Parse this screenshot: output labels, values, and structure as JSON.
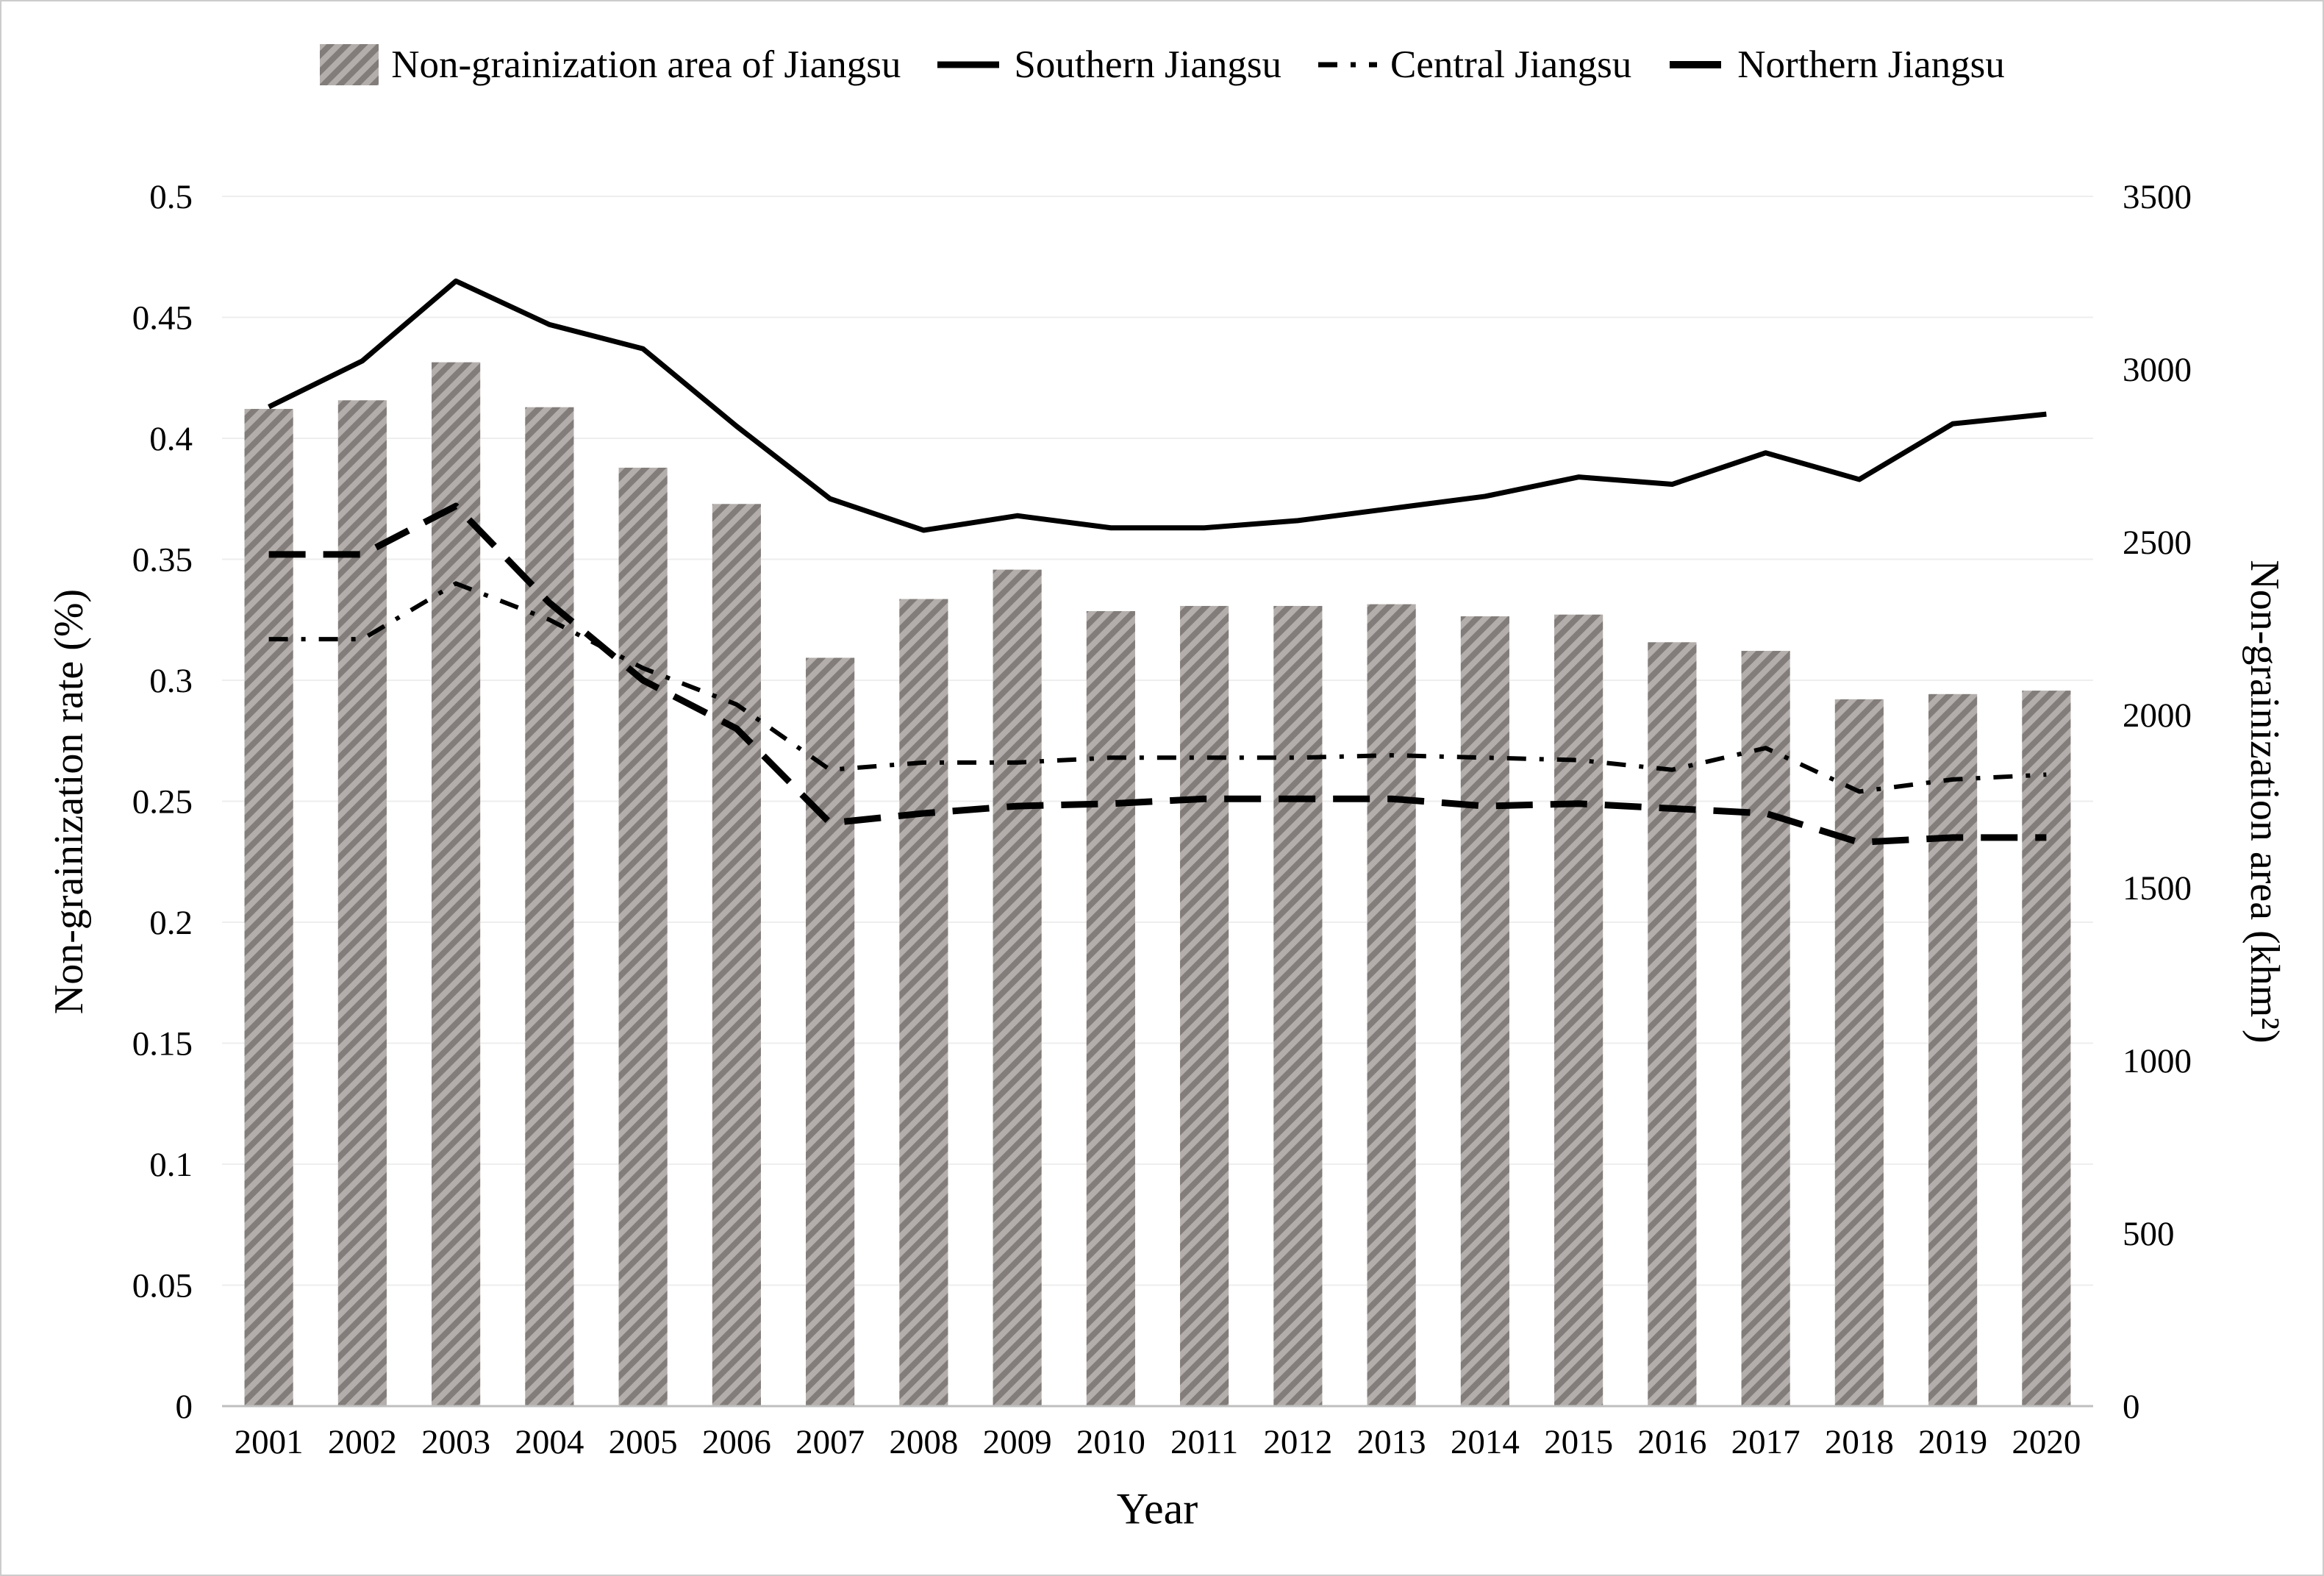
{
  "legend": {
    "items": [
      {
        "label": "Non-grainization area of Jiangsu",
        "swatch": "bar-hatch"
      },
      {
        "label": "Southern Jiangsu",
        "swatch": "line-solid"
      },
      {
        "label": "Central Jiangsu",
        "swatch": "line-dashdot"
      },
      {
        "label": "Northern Jiangsu",
        "swatch": "line-dash"
      }
    ]
  },
  "chart_data": {
    "type": "bar+line",
    "title": "",
    "xlabel": "Year",
    "categories": [
      "2001",
      "2002",
      "2003",
      "2004",
      "2005",
      "2006",
      "2007",
      "2008",
      "2009",
      "2010",
      "2011",
      "2012",
      "2013",
      "2014",
      "2015",
      "2016",
      "2017",
      "2018",
      "2019",
      "2020"
    ],
    "bar_series": {
      "name": "Non-grainization area of Jiangsu",
      "axis": "right",
      "unit": "khm2",
      "values": [
        2885,
        2910,
        3020,
        2890,
        2715,
        2610,
        2165,
        2335,
        2420,
        2300,
        2315,
        2315,
        2320,
        2285,
        2290,
        2210,
        2185,
        2045,
        2060,
        2070
      ]
    },
    "line_series": [
      {
        "name": "Southern Jiangsu",
        "style": "solid",
        "axis": "left",
        "values": [
          0.413,
          0.432,
          0.465,
          0.447,
          0.437,
          0.405,
          0.375,
          0.362,
          0.368,
          0.363,
          0.363,
          0.366,
          0.371,
          0.376,
          0.384,
          0.381,
          0.394,
          0.383,
          0.406,
          0.41
        ]
      },
      {
        "name": "Central Jiangsu",
        "style": "dashdot",
        "axis": "left",
        "values": [
          0.317,
          0.317,
          0.34,
          0.325,
          0.305,
          0.29,
          0.263,
          0.266,
          0.266,
          0.268,
          0.268,
          0.268,
          0.269,
          0.268,
          0.267,
          0.263,
          0.272,
          0.254,
          0.259,
          0.261
        ]
      },
      {
        "name": "Northern Jiangsu",
        "style": "dash",
        "axis": "left",
        "values": [
          0.352,
          0.352,
          0.372,
          0.332,
          0.3,
          0.28,
          0.241,
          0.245,
          0.248,
          0.249,
          0.251,
          0.251,
          0.251,
          0.248,
          0.249,
          0.247,
          0.245,
          0.233,
          0.235,
          0.235
        ]
      }
    ],
    "left_axis": {
      "label": "Non-grainization rate (%)",
      "min": 0,
      "max": 0.5,
      "step": 0.05,
      "ticks": [
        "0",
        "0.05",
        "0.1",
        "0.15",
        "0.2",
        "0.25",
        "0.3",
        "0.35",
        "0.4",
        "0.45",
        "0.5"
      ]
    },
    "right_axis": {
      "label": "Non-grainization area (khm²)",
      "min": 0,
      "max": 3500,
      "step": 500,
      "ticks": [
        "0",
        "500",
        "1000",
        "1500",
        "2000",
        "2500",
        "3000",
        "3500"
      ]
    },
    "grid": true,
    "legend_position": "top",
    "colors": {
      "bar_fill": "#827d7a",
      "bar_stripe": "#b3aeab",
      "line": "#000000",
      "grid": "#eeeeee",
      "axis_line": "#bfbfbf"
    }
  }
}
